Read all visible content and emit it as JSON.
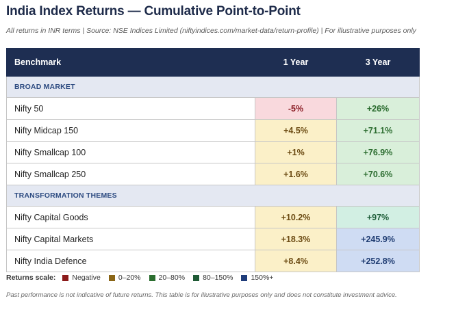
{
  "title": "India Index Returns — Cumulative Point-to-Point",
  "subtitle": "All returns in INR terms  |  Source: NSE Indices Limited (niftyindices.com/market-data/return-profile)  |  For illustrative purposes only",
  "chart_data": {
    "type": "table",
    "columns": [
      "Benchmark",
      "1 Year",
      "3 Year"
    ],
    "sections": [
      {
        "name": "BROAD MARKET",
        "rows": [
          {
            "benchmark": "Nifty 50",
            "y1": -5,
            "y1_label": "-5%",
            "y1_band": "neg",
            "y3": 26,
            "y3_label": "+26%",
            "y3_band": "mid"
          },
          {
            "benchmark": "Nifty Midcap 150",
            "y1": 4.5,
            "y1_label": "+4.5%",
            "y1_band": "low",
            "y3": 71.1,
            "y3_label": "+71.1%",
            "y3_band": "mid"
          },
          {
            "benchmark": "Nifty Smallcap 100",
            "y1": 1,
            "y1_label": "+1%",
            "y1_band": "low",
            "y3": 76.9,
            "y3_label": "+76.9%",
            "y3_band": "mid"
          },
          {
            "benchmark": "Nifty Smallcap 250",
            "y1": 1.6,
            "y1_label": "+1.6%",
            "y1_band": "low",
            "y3": 70.6,
            "y3_label": "+70.6%",
            "y3_band": "mid"
          }
        ]
      },
      {
        "name": "TRANSFORMATION THEMES",
        "rows": [
          {
            "benchmark": "Nifty Capital Goods",
            "y1": 10.2,
            "y1_label": "+10.2%",
            "y1_band": "low",
            "y3": 97,
            "y3_label": "+97%",
            "y3_band": "high"
          },
          {
            "benchmark": "Nifty Capital Markets",
            "y1": 18.3,
            "y1_label": "+18.3%",
            "y1_band": "low",
            "y3": 245.9,
            "y3_label": "+245.9%",
            "y3_band": "vhigh"
          },
          {
            "benchmark": "Nifty India Defence",
            "y1": 8.4,
            "y1_label": "+8.4%",
            "y1_band": "low",
            "y3": 252.8,
            "y3_label": "+252.8%",
            "y3_band": "vhigh"
          }
        ]
      }
    ]
  },
  "legend": {
    "label": "Returns scale:",
    "items": [
      {
        "name": "Negative",
        "color": "#8b1a1a"
      },
      {
        "name": "0–20%",
        "color": "#8a6516"
      },
      {
        "name": "20–80%",
        "color": "#2b6e2f"
      },
      {
        "name": "80–150%",
        "color": "#1f5a35"
      },
      {
        "name": "150%+",
        "color": "#1f3c7a"
      }
    ]
  },
  "footnote": "Past performance is not indicative of future returns. This table is for illustrative purposes only and does not constitute investment advice."
}
